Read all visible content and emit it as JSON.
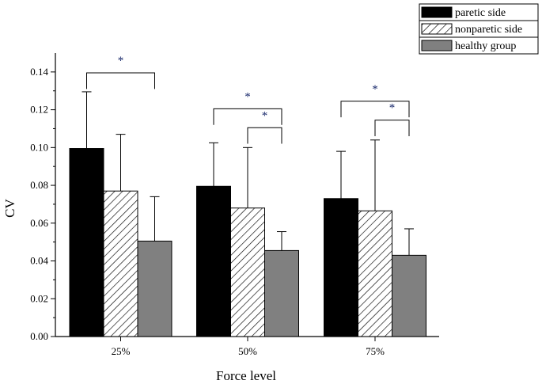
{
  "chart_data": {
    "type": "bar",
    "xlabel": "Force level",
    "ylabel": "CV",
    "ylim": [
      0,
      0.15
    ],
    "yticks": [
      "0.00",
      "0.02",
      "0.04",
      "0.06",
      "0.08",
      "0.10",
      "0.12",
      "0.14"
    ],
    "categories": [
      "25%",
      "50%",
      "75%"
    ],
    "series": [
      {
        "name": "paretic side",
        "values": [
          0.0995,
          0.0795,
          0.073
        ],
        "errors": [
          0.03,
          0.023,
          0.025
        ],
        "fill": "#000000"
      },
      {
        "name": "nonparetic side",
        "values": [
          0.077,
          0.068,
          0.0665
        ],
        "errors": [
          0.03,
          0.032,
          0.0375
        ],
        "fill": "hatch"
      },
      {
        "name": "healthy group",
        "values": [
          0.0505,
          0.0455,
          0.043
        ],
        "errors": [
          0.0235,
          0.01,
          0.014
        ],
        "fill": "#808080"
      }
    ],
    "significance": [
      {
        "category": 0,
        "from": 0,
        "to": 2,
        "label": "*"
      },
      {
        "category": 1,
        "from": 0,
        "to": 2,
        "label": "*"
      },
      {
        "category": 1,
        "from": 1,
        "to": 2,
        "label": "*"
      },
      {
        "category": 2,
        "from": 0,
        "to": 2,
        "label": "*"
      },
      {
        "category": 2,
        "from": 1,
        "to": 2,
        "label": "*"
      }
    ],
    "legend": "top-right",
    "grid": false
  }
}
